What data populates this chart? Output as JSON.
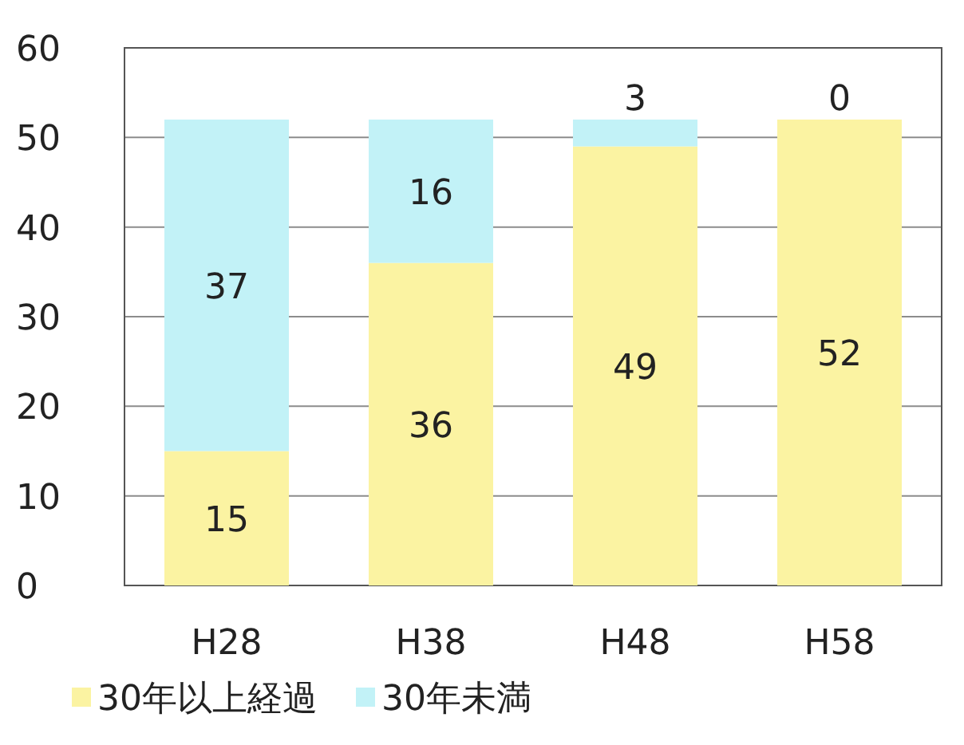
{
  "chart_data": {
    "type": "bar",
    "stacked": true,
    "categories": [
      "H28",
      "H38",
      "H48",
      "H58"
    ],
    "series": [
      {
        "name": "30年以上経過",
        "color": "#fbf3a2",
        "values": [
          15,
          36,
          49,
          52
        ]
      },
      {
        "name": "30年未満",
        "color": "#c2f2f7",
        "values": [
          37,
          16,
          3,
          0
        ]
      }
    ],
    "ylim": [
      0,
      60
    ],
    "yticks": [
      0,
      10,
      20,
      30,
      40,
      50,
      60
    ],
    "grid": "y",
    "legend": "bottom",
    "data_labels": true
  }
}
